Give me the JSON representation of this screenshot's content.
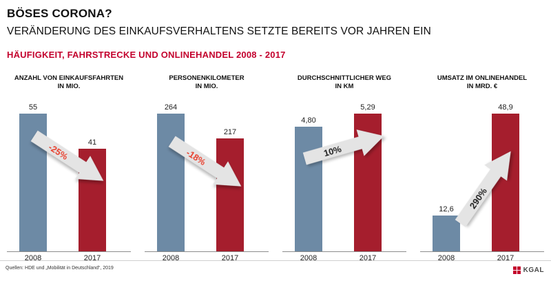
{
  "header": {
    "title": "BÖSES CORONA?",
    "subtitle": "VERÄNDERUNG DES EINKAUFSVERHALTENS SETZTE BEREITS VOR JAHREN EIN",
    "section_title": "HÄUFIGKEIT, FAHRSTRECKE UND ONLINEHANDEL 2008 - 2017"
  },
  "colors": {
    "bar_2008": "#6d8aa5",
    "bar_2017": "#a51e2d",
    "accent_red": "#c3002d",
    "arrow_fill": "#e4e4e4",
    "negative_text": "#e8412f",
    "positive_text": "#222222"
  },
  "chart_data": [
    {
      "type": "bar",
      "title": "ANZAHL VON EINKAUFSFAHRTEN IN MIO.",
      "title_lines": [
        "ANZAHL VON EINKAUFSFAHRTEN",
        "IN MIO."
      ],
      "categories": [
        "2008",
        "2017"
      ],
      "values": [
        55,
        41
      ],
      "value_labels": [
        "55",
        "41"
      ],
      "change": "-25%",
      "direction": "down",
      "ylim": [
        0,
        55
      ]
    },
    {
      "type": "bar",
      "title": "PERSONENKILOMETER IN MIO.",
      "title_lines": [
        "PERSONENKILOMETER",
        "IN MIO."
      ],
      "categories": [
        "2008",
        "2017"
      ],
      "values": [
        264,
        217
      ],
      "value_labels": [
        "264",
        "217"
      ],
      "change": "-18%",
      "direction": "down",
      "ylim": [
        0,
        264
      ]
    },
    {
      "type": "bar",
      "title": "DURCHSCHNITTLICHER WEG IN KM",
      "title_lines": [
        "DURCHSCHNITTLICHER WEG",
        "IN KM"
      ],
      "categories": [
        "2008",
        "2017"
      ],
      "values": [
        4.8,
        5.29
      ],
      "value_labels": [
        "4,80",
        "5,29"
      ],
      "change": "10%",
      "direction": "up",
      "ylim": [
        0,
        5.29
      ]
    },
    {
      "type": "bar",
      "title": "UMSATZ IM ONLINEHANDEL IN MRD. €",
      "title_lines": [
        "UMSATZ IM ONLINEHANDEL",
        "IN MRD. €"
      ],
      "categories": [
        "2008",
        "2017"
      ],
      "values": [
        12.6,
        48.9
      ],
      "value_labels": [
        "12,6",
        "48,9"
      ],
      "change": "290%",
      "direction": "up",
      "ylim": [
        0,
        48.9
      ]
    }
  ],
  "footer": {
    "source": "Quellen: HDE und „Mobilität in Deutschland“, 2019",
    "logo_text": "KGAL"
  }
}
